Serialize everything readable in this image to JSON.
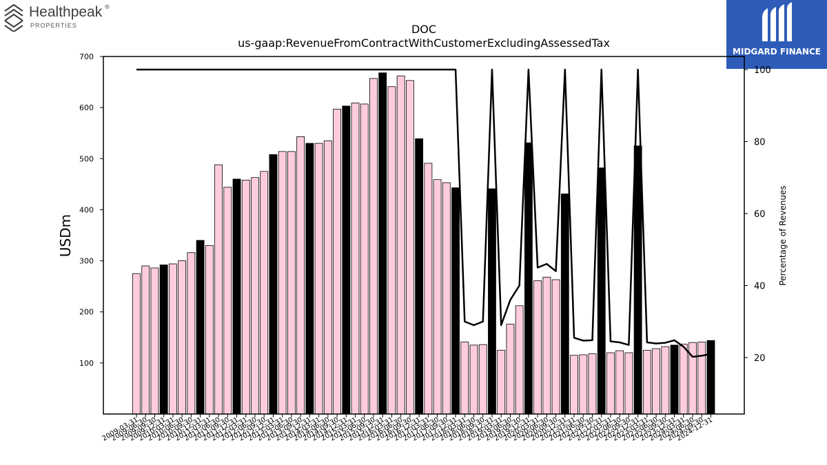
{
  "branding": {
    "left_logo_name": "Healthpeak",
    "left_logo_reg": "®",
    "left_logo_sub": "PROPERTIES",
    "right_logo_name": "MIDGARD FINANCE",
    "right_logo_bg": "#2e5cb8"
  },
  "chart_data": {
    "type": "bar",
    "title": "DOC",
    "subtitle": "us-gaap:RevenueFromContractWithCustomerExcludingAssessedTax",
    "ylabel": "USDm",
    "ylabel_right": "Percentage of Revenues",
    "ylim": [
      0,
      700
    ],
    "yticks": [
      100,
      200,
      300,
      400,
      500,
      600,
      700
    ],
    "ylim_right": [
      0,
      100
    ],
    "yticks_right": [
      20,
      40,
      60,
      80,
      100
    ],
    "grid": false,
    "colors": {
      "quarter_bar": "#ffccdd",
      "annual_bar": "#000000",
      "line": "#000000"
    },
    "x_tick_labels": [
      "2009-03-31",
      "2009-06-30",
      "2009-09-30",
      "2009-12-31",
      "2010-03-31",
      "2010-06-30",
      "2010-09-30",
      "2010-12-31",
      "2011-03-31",
      "2011-06-30",
      "2011-09-30",
      "2011-12-31",
      "2012-03-31",
      "2012-06-30",
      "2012-09-30",
      "2012-12-31",
      "2013-03-31",
      "2013-06-30",
      "2013-09-30",
      "2013-12-31",
      "2014-03-31",
      "2014-06-30",
      "2014-09-30",
      "2014-12-31",
      "2015-03-31",
      "2015-06-30",
      "2015-09-30",
      "2015-12-31",
      "2016-03-31",
      "2016-06-30",
      "2016-09-30",
      "2016-12-31",
      "2017-03-31",
      "2017-06-30",
      "2017-09-30",
      "2017-12-31",
      "2018-03-31",
      "2018-06-30",
      "2018-09-30",
      "2018-12-31",
      "2019-03-31",
      "2019-06-30",
      "2019-09-30",
      "2019-12-31",
      "2020-03-31",
      "2020-06-30",
      "2020-09-30",
      "2020-12-31",
      "2021-03-31",
      "2021-06-30",
      "2021-09-30",
      "2021-12-31",
      "2022-03-31",
      "2022-06-30",
      "2022-09-30",
      "2022-12-31",
      "2023-03-31",
      "2023-06-30",
      "2023-09-30",
      "2023-12-31",
      "2024-03-31",
      "2024-06-30",
      "2024-09-30",
      "2024-12-31"
    ],
    "bars": [
      {
        "value": 275,
        "annual": false
      },
      {
        "value": 290,
        "annual": false
      },
      {
        "value": 286,
        "annual": false
      },
      {
        "value": 292,
        "annual": true
      },
      {
        "value": 294,
        "annual": false
      },
      {
        "value": 300,
        "annual": false
      },
      {
        "value": 316,
        "annual": false
      },
      {
        "value": 340,
        "annual": true
      },
      {
        "value": 330,
        "annual": false
      },
      {
        "value": 488,
        "annual": false
      },
      {
        "value": 444,
        "annual": false
      },
      {
        "value": 460,
        "annual": true
      },
      {
        "value": 458,
        "annual": false
      },
      {
        "value": 463,
        "annual": false
      },
      {
        "value": 475,
        "annual": false
      },
      {
        "value": 508,
        "annual": true
      },
      {
        "value": 514,
        "annual": false
      },
      {
        "value": 514,
        "annual": false
      },
      {
        "value": 543,
        "annual": false
      },
      {
        "value": 530,
        "annual": true
      },
      {
        "value": 530,
        "annual": false
      },
      {
        "value": 535,
        "annual": false
      },
      {
        "value": 597,
        "annual": false
      },
      {
        "value": 603,
        "annual": true
      },
      {
        "value": 609,
        "annual": false
      },
      {
        "value": 607,
        "annual": false
      },
      {
        "value": 657,
        "annual": false
      },
      {
        "value": 668,
        "annual": true
      },
      {
        "value": 641,
        "annual": false
      },
      {
        "value": 662,
        "annual": false
      },
      {
        "value": 653,
        "annual": false
      },
      {
        "value": 539,
        "annual": true
      },
      {
        "value": 491,
        "annual": false
      },
      {
        "value": 459,
        "annual": false
      },
      {
        "value": 453,
        "annual": false
      },
      {
        "value": 443,
        "annual": true
      },
      {
        "value": 141,
        "annual": false
      },
      {
        "value": 135,
        "annual": false
      },
      {
        "value": 136,
        "annual": false
      },
      {
        "value": 441,
        "annual": true
      },
      {
        "value": 125,
        "annual": false
      },
      {
        "value": 176,
        "annual": false
      },
      {
        "value": 212,
        "annual": false
      },
      {
        "value": 531,
        "annual": true
      },
      {
        "value": 261,
        "annual": false
      },
      {
        "value": 268,
        "annual": false
      },
      {
        "value": 263,
        "annual": false
      },
      {
        "value": 431,
        "annual": true
      },
      {
        "value": 115,
        "annual": false
      },
      {
        "value": 116,
        "annual": false
      },
      {
        "value": 118,
        "annual": false
      },
      {
        "value": 482,
        "annual": true
      },
      {
        "value": 120,
        "annual": false
      },
      {
        "value": 124,
        "annual": false
      },
      {
        "value": 120,
        "annual": false
      },
      {
        "value": 525,
        "annual": true
      },
      {
        "value": 125,
        "annual": false
      },
      {
        "value": 128,
        "annual": false
      },
      {
        "value": 132,
        "annual": false
      },
      {
        "value": 135,
        "annual": true
      },
      {
        "value": 137,
        "annual": false
      },
      {
        "value": 140,
        "annual": false
      },
      {
        "value": 141,
        "annual": false
      },
      {
        "value": 144,
        "annual": true
      }
    ],
    "line_percent": [
      100,
      100,
      100,
      100,
      100,
      100,
      100,
      100,
      100,
      100,
      100,
      100,
      100,
      100,
      100,
      100,
      100,
      100,
      100,
      100,
      100,
      100,
      100,
      100,
      100,
      100,
      100,
      100,
      100,
      100,
      100,
      100,
      100,
      100,
      100,
      100,
      30,
      29,
      30,
      100,
      29,
      36,
      40,
      100,
      45,
      46,
      44,
      100,
      25.5,
      24.7,
      24.8,
      100,
      24.5,
      24.2,
      23.5,
      100,
      24.2,
      23.9,
      24.1,
      24.8,
      23,
      20.2,
      20.5,
      21
    ]
  }
}
